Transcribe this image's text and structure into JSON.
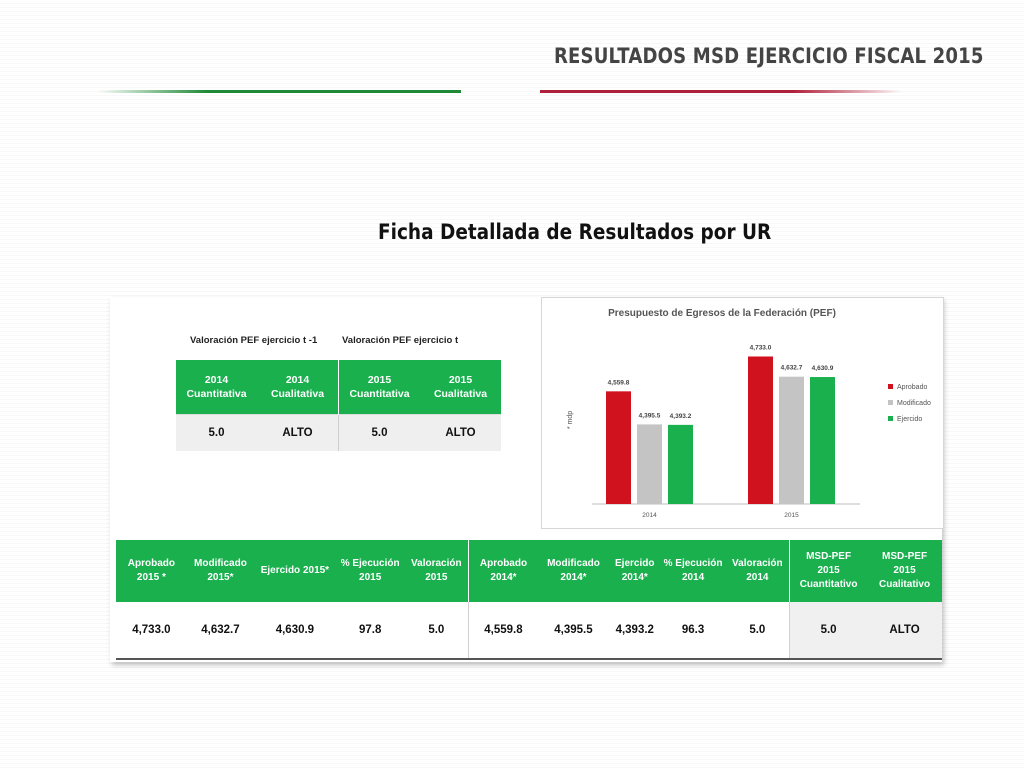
{
  "header": {
    "title": "RESULTADOS MSD EJERCICIO FISCAL 2015",
    "subtitle": "Ficha Detallada de Resultados por UR",
    "accent_green": "#1f8a36",
    "accent_red": "#b0213b"
  },
  "valoracion": {
    "head_prev": "Valoración PEF ejercicio t -1",
    "head_curr": "Valoración PEF ejercicio t",
    "columns": [
      {
        "year": "2014",
        "label": "Cuantitativa",
        "value": "5.0"
      },
      {
        "year": "2014",
        "label": "Cualitativa",
        "value": "ALTO"
      },
      {
        "year": "2015",
        "label": "Cuantitativa",
        "value": "5.0"
      },
      {
        "year": "2015",
        "label": "Cualitativa",
        "value": "ALTO"
      }
    ]
  },
  "chart_data": {
    "type": "bar",
    "title": "Presupuesto de Egresos de la Federación (PEF)",
    "ylabel": "* mdp",
    "categories": [
      "2014",
      "2015"
    ],
    "series": [
      {
        "name": "Aprobado",
        "color": "#d0121f",
        "values": [
          4559.8,
          4733.0
        ],
        "labels": [
          "4,559.8",
          "4,733.0"
        ]
      },
      {
        "name": "Modificado",
        "color": "#c4c4c4",
        "values": [
          4395.5,
          4632.7
        ],
        "labels": [
          "4,395.5",
          "4,632.7"
        ]
      },
      {
        "name": "Ejercido",
        "color": "#1ab04e",
        "values": [
          4393.2,
          4630.9
        ],
        "labels": [
          "4,393.2",
          "4,630.9"
        ]
      }
    ],
    "legend_position": "right",
    "grid": false
  },
  "summary_table": {
    "headers": [
      [
        "Aprobado",
        "2015 *"
      ],
      [
        "Modificado",
        "2015*"
      ],
      [
        "Ejercido 2015*"
      ],
      [
        "% Ejecución",
        "2015"
      ],
      [
        "Valoración",
        "2015"
      ],
      [
        "Aprobado",
        "2014*"
      ],
      [
        "Modificado",
        "2014*"
      ],
      [
        "Ejercido",
        "2014*"
      ],
      [
        "% Ejecución",
        "2014"
      ],
      [
        "Valoración",
        "2014"
      ],
      [
        "MSD-PEF",
        "2015",
        "Cuantitativo"
      ],
      [
        "MSD-PEF",
        "2015",
        "Cualitativo"
      ]
    ],
    "values": [
      "4,733.0",
      "4,632.7",
      "4,630.9",
      "97.8",
      "5.0",
      "4,559.8",
      "4,395.5",
      "4,393.2",
      "96.3",
      "5.0",
      "5.0",
      "ALTO"
    ]
  }
}
